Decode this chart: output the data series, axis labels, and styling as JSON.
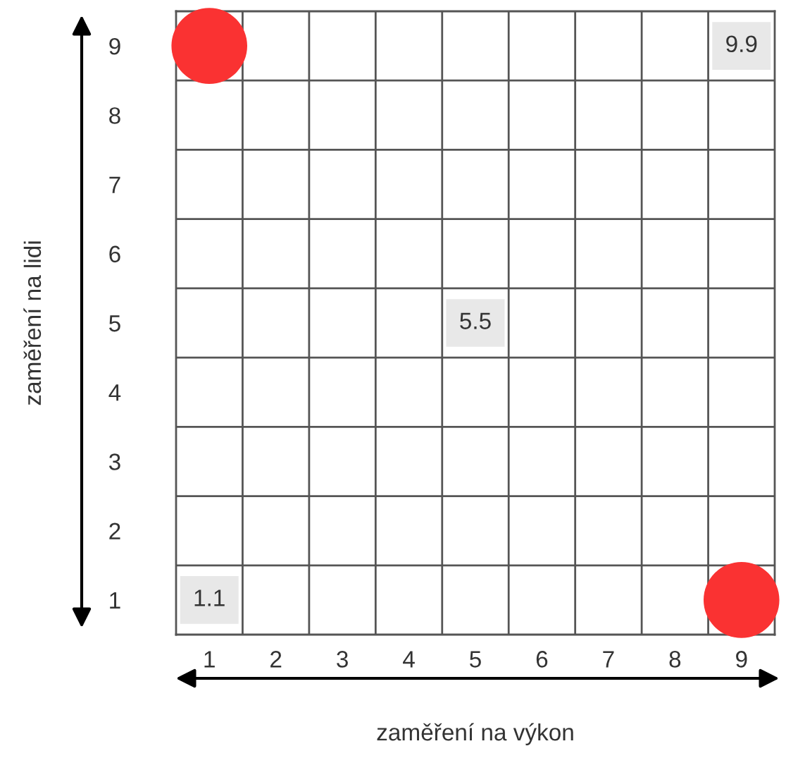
{
  "chart_data": {
    "type": "scatter",
    "xlabel": "zaměření na výkon",
    "ylabel": "zaměření na lidi",
    "x": [
      1,
      9
    ],
    "values": [
      9,
      1
    ],
    "color": "#fa3232",
    "marker": "circle",
    "xlim": [
      0.5,
      9.5
    ],
    "ylim": [
      0.5,
      9.5
    ],
    "xticks": [
      1,
      2,
      3,
      4,
      5,
      6,
      7,
      8,
      9
    ],
    "yticks": [
      1,
      2,
      3,
      4,
      5,
      6,
      7,
      8,
      9
    ],
    "grid": true,
    "annotations": [
      {
        "text": "1.1",
        "x": 1,
        "y": 1
      },
      {
        "text": "5.5",
        "x": 5,
        "y": 5
      },
      {
        "text": "9.9",
        "x": 9,
        "y": 9
      }
    ]
  }
}
